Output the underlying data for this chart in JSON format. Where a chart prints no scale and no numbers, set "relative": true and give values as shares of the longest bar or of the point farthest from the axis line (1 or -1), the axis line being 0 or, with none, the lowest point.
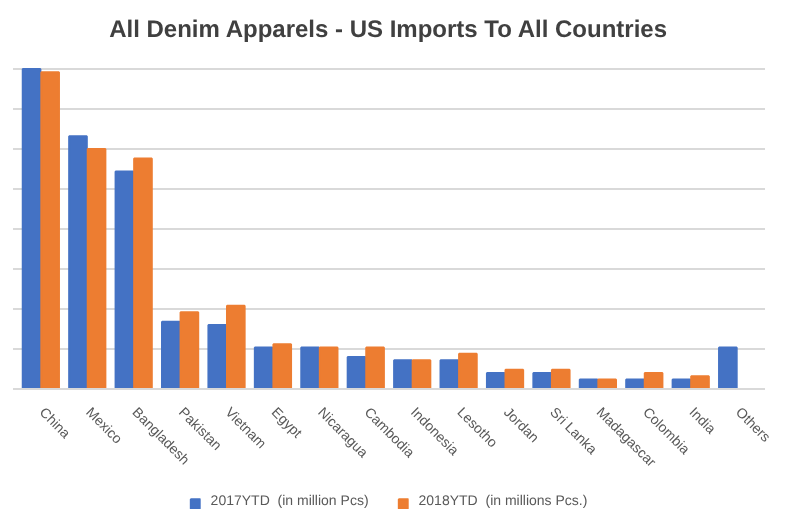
{
  "chart_data": {
    "type": "bar",
    "title": "All Denim Apparels - US Imports To All Countries",
    "categories": [
      "China",
      "Mexico",
      "Bangladesh",
      "Pakistan",
      "Vietnam",
      "Egypt",
      "Nicaragua",
      "Cambodia",
      "Indonesia",
      "Lesotho",
      "Jordan",
      "Sri Lanka",
      "Madagascar",
      "Colombia",
      "India",
      "Others"
    ],
    "series": [
      {
        "name": "2017YTD  (in million Pcs)",
        "color": "#4472c4",
        "values": [
          1,
          0.79,
          0.68,
          0.21,
          0.2,
          0.13,
          0.13,
          0.1,
          0.09,
          0.09,
          0.05,
          0.05,
          0.03,
          0.03,
          0.03,
          0.13
        ]
      },
      {
        "name": "2018YTD  (in millions Pcs.)",
        "color": "#ed7d31",
        "values": [
          0.99,
          0.75,
          0.72,
          0.24,
          0.26,
          0.14,
          0.13,
          0.13,
          0.09,
          0.11,
          0.06,
          0.06,
          0.03,
          0.05,
          0.04,
          null
        ]
      }
    ],
    "relative": true,
    "grid": "y",
    "legend": "bottom"
  }
}
